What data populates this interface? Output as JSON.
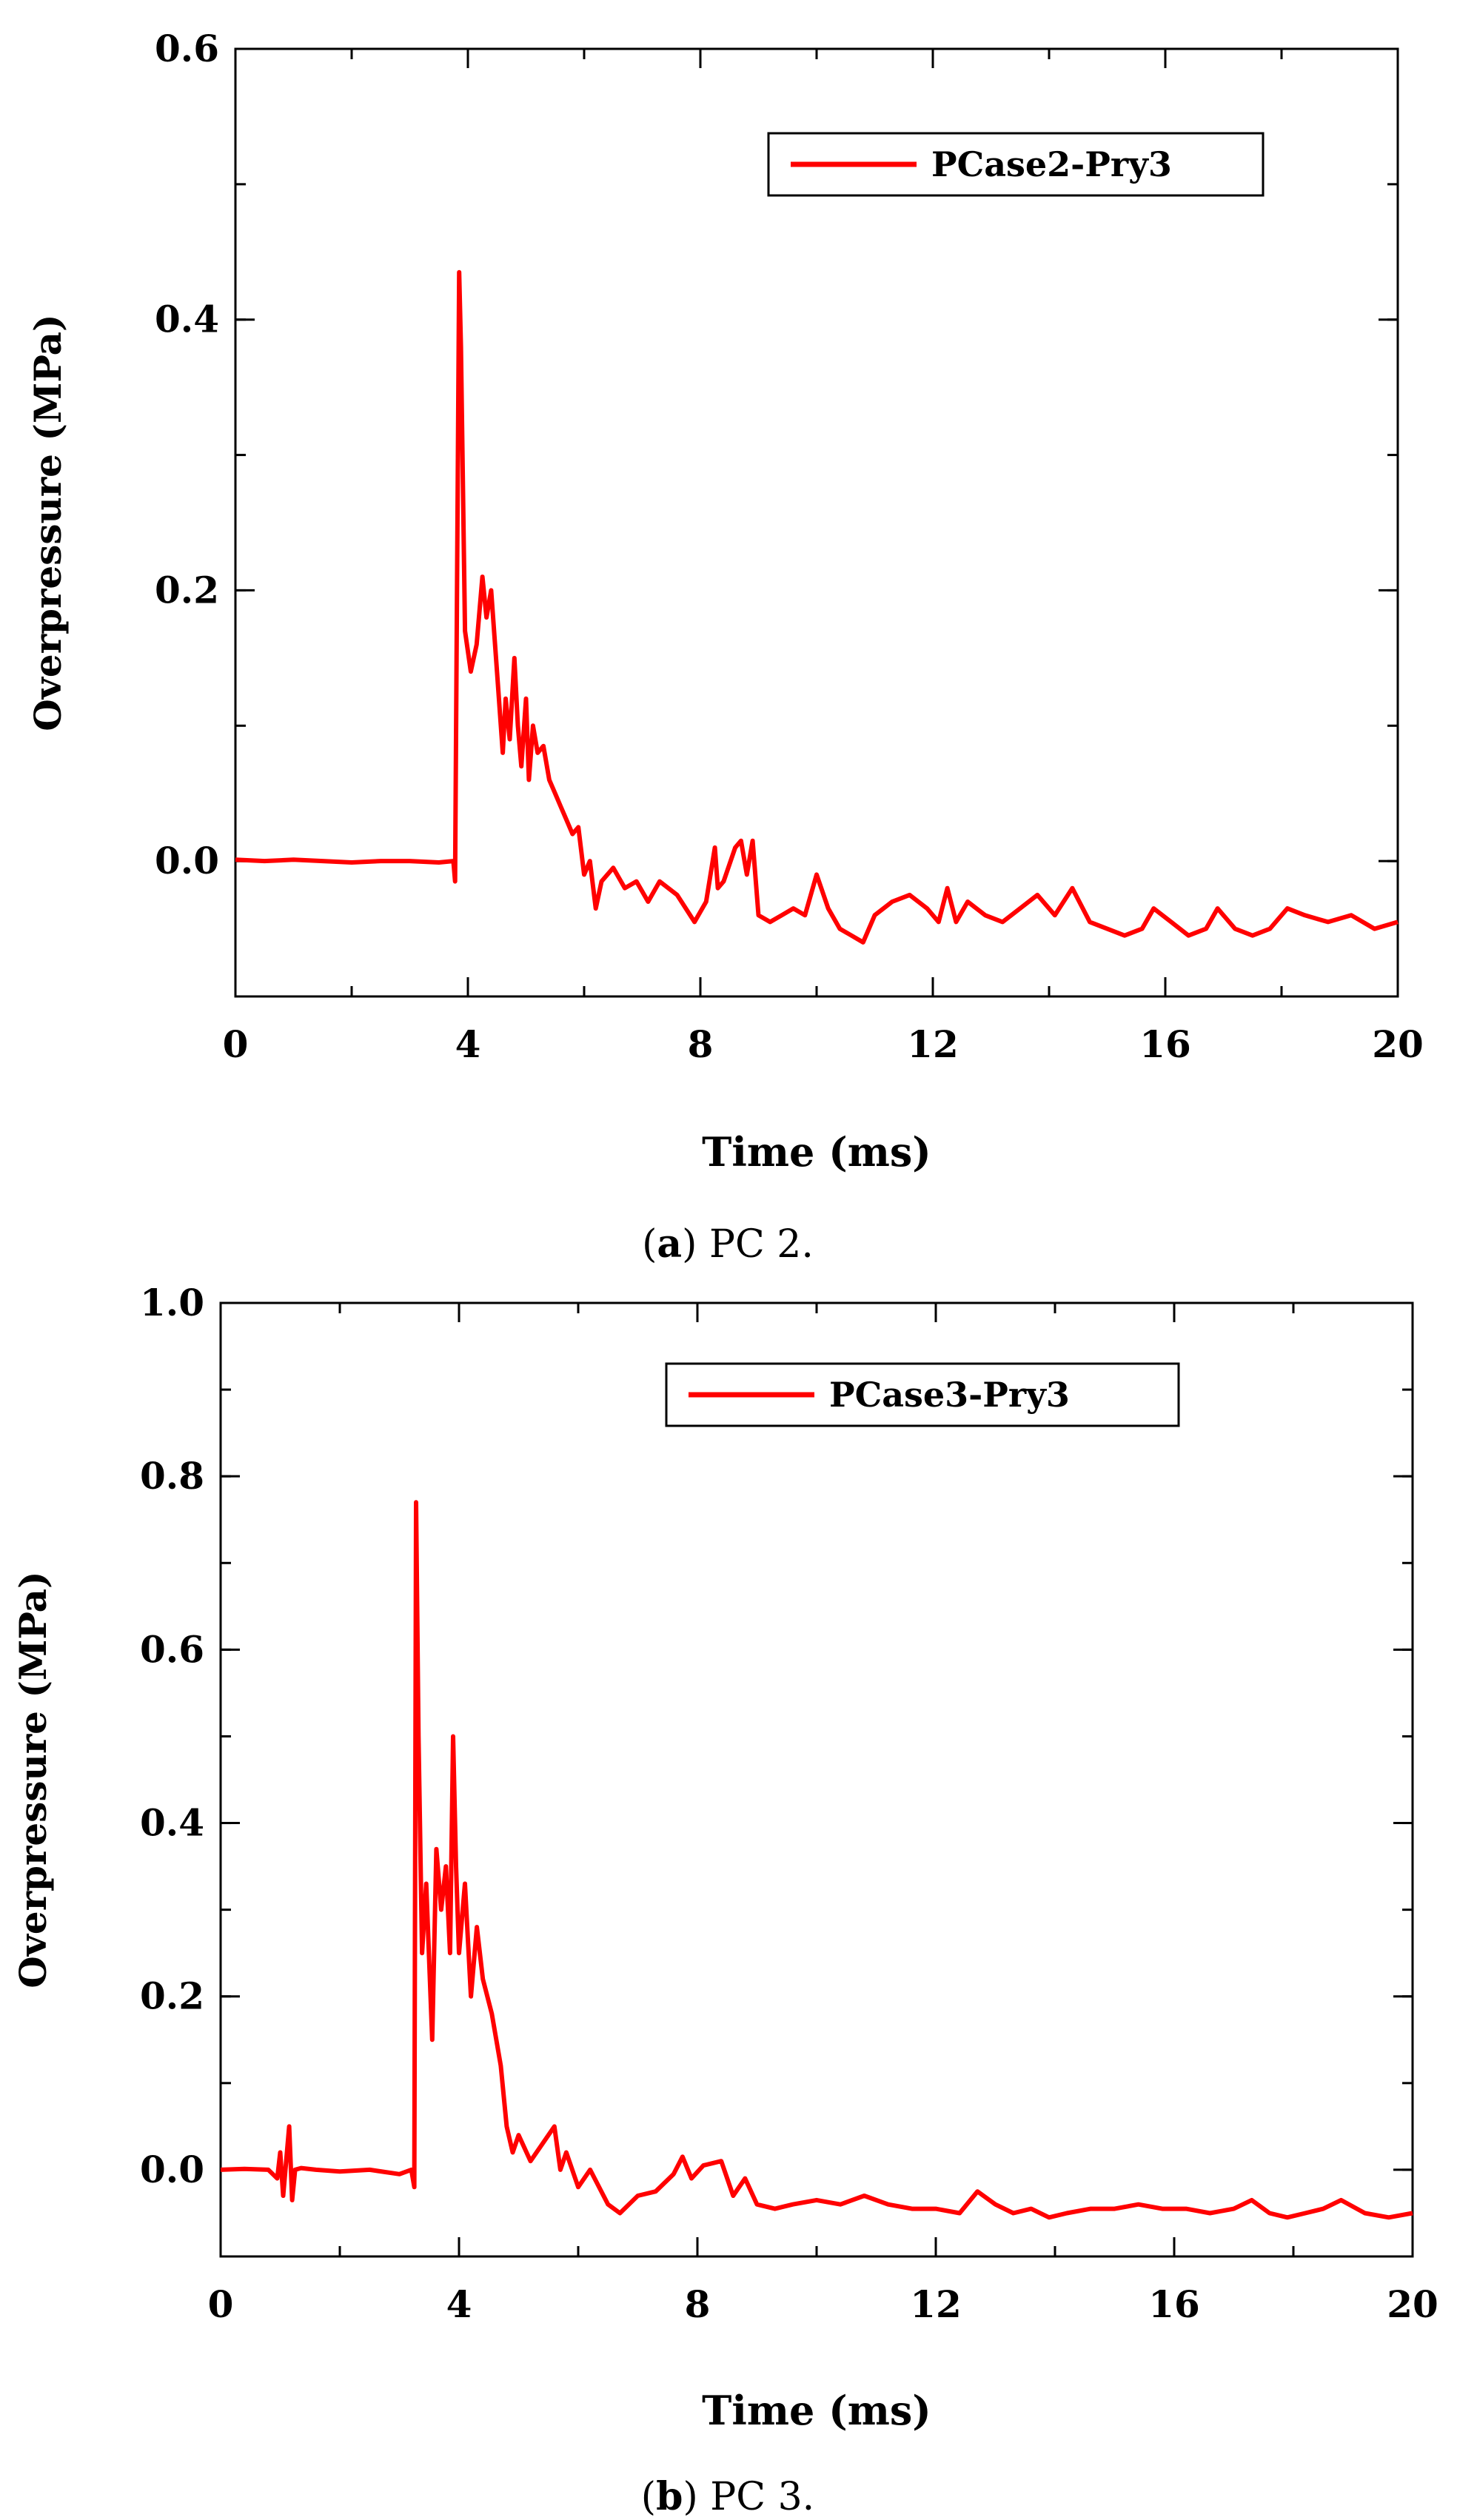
{
  "figure": {
    "panels": [
      {
        "caption_letter": "a",
        "caption_text": "PC 2."
      },
      {
        "caption_letter": "b",
        "caption_text": "PC 3."
      }
    ]
  },
  "chart_data": [
    {
      "type": "line",
      "xlabel": "Time (ms)",
      "ylabel": "Overpressure (MPa)",
      "xlim": [
        0,
        20
      ],
      "ylim": [
        -0.1,
        0.6
      ],
      "xticks": [
        0,
        4,
        8,
        12,
        16,
        20
      ],
      "xtick_labels": [
        "0",
        "4",
        "8",
        "12",
        "16",
        "20"
      ],
      "yticks": [
        0.0,
        0.2,
        0.4,
        0.6
      ],
      "ytick_labels": [
        "0.0",
        "0.2",
        "0.4",
        "0.6"
      ],
      "legend_position": "top-right",
      "series": [
        {
          "name": "PCase2-Pry3",
          "color": "#ff0000",
          "x": [
            0,
            0.5,
            1,
            1.5,
            2,
            2.5,
            3,
            3.5,
            3.75,
            3.78,
            3.82,
            3.85,
            3.88,
            3.95,
            4.05,
            4.15,
            4.25,
            4.32,
            4.4,
            4.5,
            4.6,
            4.65,
            4.72,
            4.8,
            4.86,
            4.92,
            5.0,
            5.05,
            5.12,
            5.2,
            5.3,
            5.4,
            5.5,
            5.6,
            5.7,
            5.8,
            5.9,
            6.0,
            6.1,
            6.2,
            6.3,
            6.5,
            6.7,
            6.9,
            7.1,
            7.3,
            7.6,
            7.9,
            8.1,
            8.25,
            8.3,
            8.4,
            8.6,
            8.7,
            8.8,
            8.9,
            9.0,
            9.2,
            9.4,
            9.6,
            9.8,
            10.0,
            10.2,
            10.4,
            10.6,
            10.8,
            11.0,
            11.3,
            11.6,
            11.9,
            12.1,
            12.25,
            12.4,
            12.6,
            12.9,
            13.2,
            13.5,
            13.8,
            14.1,
            14.4,
            14.7,
            15.0,
            15.3,
            15.6,
            15.8,
            16.1,
            16.4,
            16.7,
            16.9,
            17.2,
            17.5,
            17.8,
            18.1,
            18.4,
            18.8,
            19.2,
            19.6,
            20.0
          ],
          "y": [
            0.001,
            0.0,
            0.001,
            0.0,
            -0.001,
            0.0,
            0.0,
            -0.001,
            0.0,
            -0.015,
            0.25,
            0.435,
            0.38,
            0.17,
            0.14,
            0.16,
            0.21,
            0.18,
            0.2,
            0.14,
            0.08,
            0.12,
            0.09,
            0.15,
            0.1,
            0.07,
            0.12,
            0.06,
            0.1,
            0.08,
            0.085,
            0.06,
            0.05,
            0.04,
            0.03,
            0.02,
            0.025,
            -0.01,
            0.0,
            -0.035,
            -0.015,
            -0.005,
            -0.02,
            -0.015,
            -0.03,
            -0.015,
            -0.025,
            -0.045,
            -0.03,
            0.01,
            -0.02,
            -0.015,
            0.01,
            0.015,
            -0.01,
            0.015,
            -0.04,
            -0.045,
            -0.04,
            -0.035,
            -0.04,
            -0.01,
            -0.035,
            -0.05,
            -0.055,
            -0.06,
            -0.04,
            -0.03,
            -0.025,
            -0.035,
            -0.045,
            -0.02,
            -0.045,
            -0.03,
            -0.04,
            -0.045,
            -0.035,
            -0.025,
            -0.04,
            -0.02,
            -0.045,
            -0.05,
            -0.055,
            -0.05,
            -0.035,
            -0.045,
            -0.055,
            -0.05,
            -0.035,
            -0.05,
            -0.055,
            -0.05,
            -0.035,
            -0.04,
            -0.045,
            -0.04,
            -0.05,
            -0.045
          ]
        }
      ]
    },
    {
      "type": "line",
      "xlabel": "Time (ms)",
      "ylabel": "Overpressure (MPa)",
      "xlim": [
        0,
        20
      ],
      "ylim": [
        -0.1,
        1.0
      ],
      "xticks": [
        0,
        4,
        8,
        12,
        16,
        20
      ],
      "xtick_labels": [
        "0",
        "4",
        "8",
        "12",
        "16",
        "20"
      ],
      "yticks": [
        0.0,
        0.2,
        0.4,
        0.6,
        0.8,
        1.0
      ],
      "ytick_labels": [
        "0.0",
        "0.2",
        "0.4",
        "0.6",
        "0.8",
        "1.0"
      ],
      "legend_position": "top-right",
      "series": [
        {
          "name": "PCase3-Pry3",
          "color": "#ff0000",
          "x": [
            0,
            0.4,
            0.8,
            0.95,
            1.0,
            1.05,
            1.15,
            1.2,
            1.25,
            1.35,
            1.6,
            2.0,
            2.5,
            3.0,
            3.2,
            3.25,
            3.28,
            3.32,
            3.38,
            3.45,
            3.55,
            3.62,
            3.7,
            3.78,
            3.85,
            3.9,
            3.95,
            4.0,
            4.1,
            4.2,
            4.3,
            4.4,
            4.55,
            4.7,
            4.8,
            4.9,
            5.0,
            5.2,
            5.4,
            5.6,
            5.7,
            5.8,
            6.0,
            6.2,
            6.5,
            6.7,
            7.0,
            7.3,
            7.6,
            7.75,
            7.9,
            8.1,
            8.4,
            8.6,
            8.8,
            9.0,
            9.3,
            9.6,
            10.0,
            10.4,
            10.8,
            11.2,
            11.6,
            12.0,
            12.4,
            12.7,
            13.0,
            13.3,
            13.6,
            13.9,
            14.2,
            14.6,
            15.0,
            15.4,
            15.8,
            16.2,
            16.6,
            17.0,
            17.3,
            17.6,
            17.9,
            18.2,
            18.5,
            18.8,
            19.2,
            19.6,
            20.0
          ],
          "y": [
            0.0,
            0.001,
            0.0,
            -0.01,
            0.02,
            -0.03,
            0.05,
            -0.035,
            0.0,
            0.002,
            0.0,
            -0.002,
            0.0,
            -0.005,
            0.0,
            -0.02,
            0.77,
            0.5,
            0.25,
            0.33,
            0.15,
            0.37,
            0.3,
            0.35,
            0.25,
            0.5,
            0.35,
            0.25,
            0.33,
            0.2,
            0.28,
            0.22,
            0.18,
            0.12,
            0.05,
            0.02,
            0.04,
            0.01,
            0.03,
            0.05,
            0.0,
            0.02,
            -0.02,
            0.0,
            -0.04,
            -0.05,
            -0.03,
            -0.025,
            -0.005,
            0.015,
            -0.01,
            0.005,
            0.01,
            -0.03,
            -0.01,
            -0.04,
            -0.045,
            -0.04,
            -0.035,
            -0.04,
            -0.03,
            -0.04,
            -0.045,
            -0.045,
            -0.05,
            -0.025,
            -0.04,
            -0.05,
            -0.045,
            -0.055,
            -0.05,
            -0.045,
            -0.045,
            -0.04,
            -0.045,
            -0.045,
            -0.05,
            -0.045,
            -0.035,
            -0.05,
            -0.055,
            -0.05,
            -0.045,
            -0.035,
            -0.05,
            -0.055,
            -0.05
          ]
        }
      ]
    }
  ]
}
